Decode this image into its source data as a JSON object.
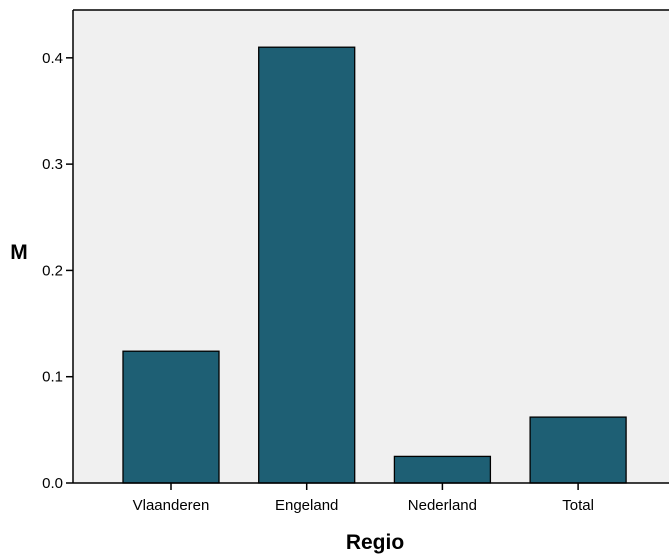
{
  "chart_data": {
    "type": "bar",
    "categories": [
      "Vlaanderen",
      "Engeland",
      "Nederland",
      "Total"
    ],
    "values": [
      0.124,
      0.41,
      0.025,
      0.062
    ],
    "title": "",
    "xlabel": "Regio",
    "ylabel": "M",
    "ylim": [
      0,
      0.445
    ],
    "yticks": [
      0.0,
      0.1,
      0.2,
      0.3,
      0.4
    ],
    "ytick_labels": [
      "0.0",
      "0.1",
      "0.2",
      "0.3",
      "0.4"
    ],
    "grid": false,
    "legend": "none",
    "colors": {
      "bar_fill": "#1e5f74",
      "bar_stroke": "#000000",
      "plot_background": "#f0f0f0",
      "axis": "#000000"
    }
  }
}
